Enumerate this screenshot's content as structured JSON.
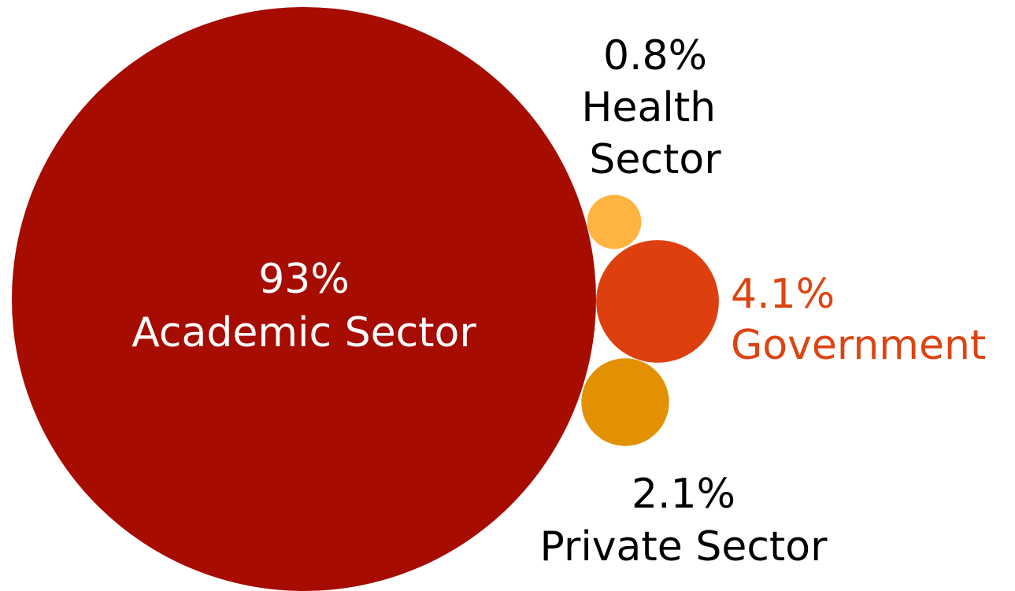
{
  "chart_data": {
    "type": "bubble",
    "series": [
      {
        "name": "Academic Sector",
        "value": 93,
        "value_label": "93%",
        "color": "#a60c00",
        "label_color": "#ffffff"
      },
      {
        "name": "Health Sector",
        "value": 0.8,
        "value_label": "0.8%",
        "color": "#ffb340",
        "label_color": "#000000"
      },
      {
        "name": "Government",
        "value": 4.1,
        "value_label": "4.1%",
        "color": "#dd3f0e",
        "label_color": "#dd4411"
      },
      {
        "name": "Private Sector",
        "value": 2.1,
        "value_label": "2.1%",
        "color": "#e39102",
        "label_color": "#000000"
      }
    ]
  }
}
